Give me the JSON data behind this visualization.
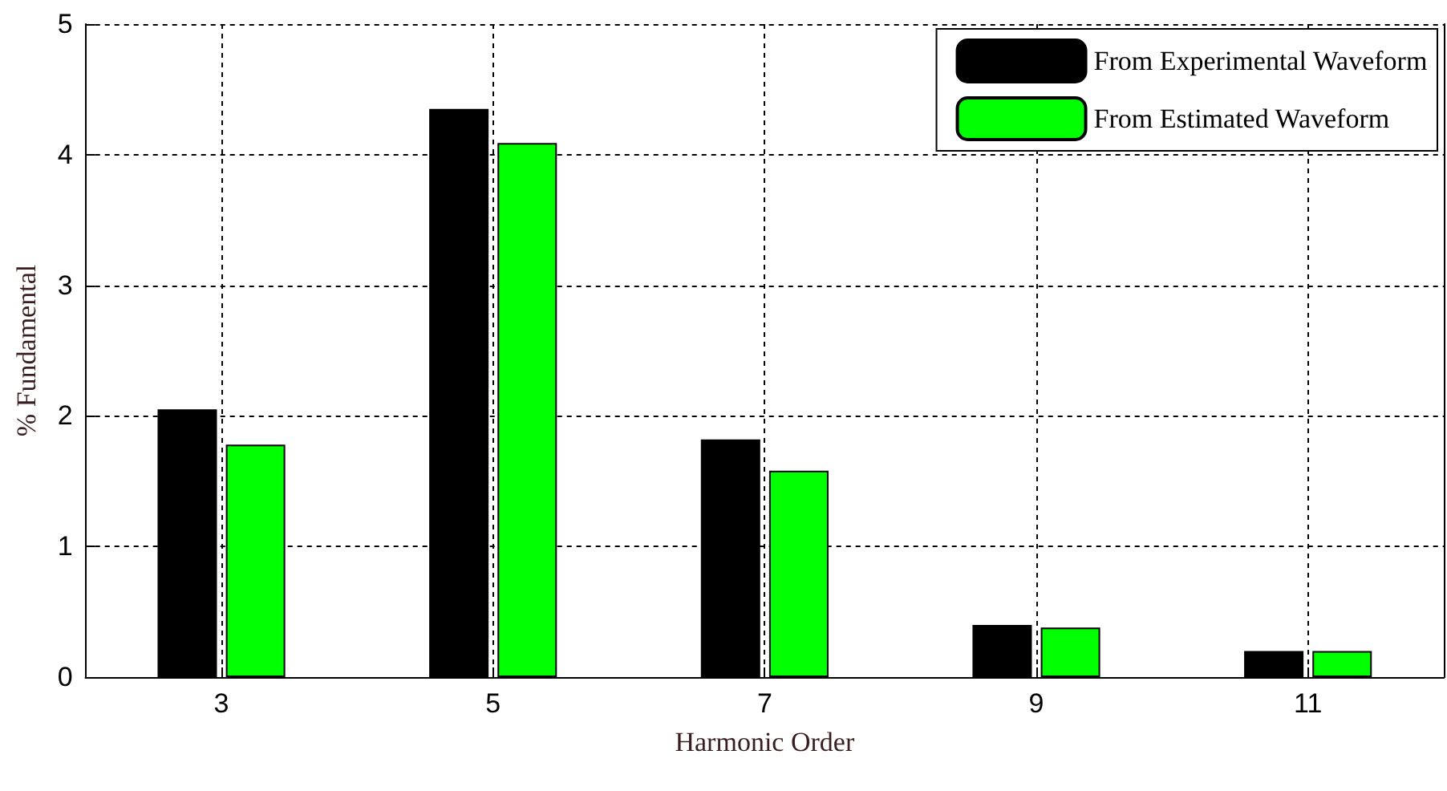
{
  "chart_data": {
    "type": "bar",
    "xlabel": "Harmonic Order",
    "ylabel": "% Fundamental",
    "categories": [
      "3",
      "5",
      "7",
      "9",
      "11"
    ],
    "series": [
      {
        "name": "From Experimental Waveform",
        "color": "#000000",
        "values": [
          2.05,
          4.35,
          1.82,
          0.4,
          0.2
        ]
      },
      {
        "name": "From Estimated Waveform",
        "color": "#00ff00",
        "values": [
          1.78,
          4.09,
          1.58,
          0.38,
          0.2
        ]
      }
    ],
    "ylim": [
      0,
      5
    ],
    "yticks": [
      0,
      1,
      2,
      3,
      4,
      5
    ],
    "grid": true,
    "legend": "top right"
  }
}
